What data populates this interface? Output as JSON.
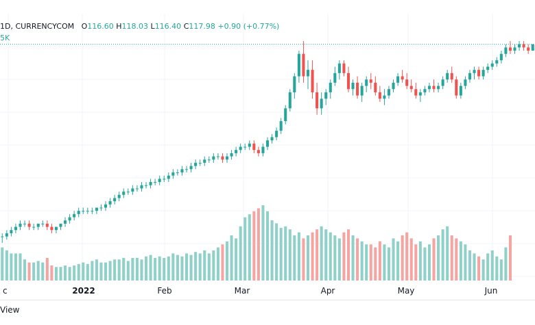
{
  "legend": {
    "symbol_text": "1D, CURRENCYCOM",
    "o_label": "O",
    "o_value": "116.60",
    "h_label": "H",
    "h_value": "118.03",
    "l_label": "L",
    "l_value": "116.40",
    "c_label": "C",
    "c_value": "117.98",
    "change": "+0.90 (+0.77%)",
    "volume_text": "5K"
  },
  "footer": {
    "text": "View"
  },
  "colors": {
    "up": "#26a69a",
    "down": "#ef5350",
    "vol_up": "#8fd0c8",
    "vol_down": "#f5a4a1",
    "grid": "#f0f3fa",
    "axis_text": "#131722"
  },
  "chart_data": {
    "type": "candlestick",
    "x_labels": [
      "c",
      "2022",
      "Feb",
      "Mar",
      "Apr",
      "May",
      "Jun"
    ],
    "last_close_line": true,
    "grid": true,
    "series": [
      {
        "kind": "ohlc",
        "values": [
          [
            58,
            59,
            56,
            58
          ],
          [
            58,
            60,
            57,
            59
          ],
          [
            59,
            61,
            58,
            60
          ],
          [
            60,
            62,
            59,
            61
          ],
          [
            61,
            63,
            60,
            62
          ],
          [
            62,
            63,
            61,
            62
          ],
          [
            62,
            63,
            60,
            61
          ],
          [
            61,
            62,
            60,
            61
          ],
          [
            61,
            62,
            60,
            62
          ],
          [
            62,
            63,
            61,
            62
          ],
          [
            62,
            63,
            60,
            61
          ],
          [
            61,
            62,
            59,
            60
          ],
          [
            60,
            61,
            59,
            61
          ],
          [
            61,
            62,
            60,
            62
          ],
          [
            62,
            64,
            61,
            63
          ],
          [
            63,
            65,
            62,
            64
          ],
          [
            64,
            66,
            63,
            65
          ],
          [
            65,
            67,
            64,
            66
          ],
          [
            66,
            67,
            65,
            66
          ],
          [
            66,
            67,
            65,
            66
          ],
          [
            66,
            67,
            65,
            66
          ],
          [
            66,
            67,
            65,
            67
          ],
          [
            67,
            68,
            66,
            67
          ],
          [
            67,
            69,
            66,
            68
          ],
          [
            68,
            70,
            67,
            69
          ],
          [
            69,
            71,
            68,
            70
          ],
          [
            70,
            72,
            69,
            71
          ],
          [
            71,
            73,
            70,
            72
          ],
          [
            72,
            73,
            71,
            72
          ],
          [
            72,
            74,
            71,
            73
          ],
          [
            73,
            74,
            72,
            73
          ],
          [
            73,
            75,
            72,
            74
          ],
          [
            74,
            75,
            73,
            74
          ],
          [
            74,
            76,
            73,
            75
          ],
          [
            75,
            76,
            74,
            75
          ],
          [
            75,
            77,
            74,
            76
          ],
          [
            76,
            77,
            75,
            76
          ],
          [
            76,
            78,
            75,
            77
          ],
          [
            77,
            79,
            76,
            78
          ],
          [
            78,
            79,
            77,
            78
          ],
          [
            78,
            80,
            77,
            79
          ],
          [
            79,
            80,
            78,
            79
          ],
          [
            79,
            81,
            78,
            80
          ],
          [
            80,
            82,
            79,
            81
          ],
          [
            81,
            82,
            80,
            81
          ],
          [
            81,
            83,
            80,
            82
          ],
          [
            82,
            83,
            81,
            82
          ],
          [
            82,
            84,
            81,
            83
          ],
          [
            83,
            84,
            82,
            83
          ],
          [
            83,
            84,
            81,
            82
          ],
          [
            82,
            84,
            81,
            83
          ],
          [
            83,
            85,
            82,
            84
          ],
          [
            84,
            86,
            83,
            85
          ],
          [
            85,
            87,
            84,
            86
          ],
          [
            86,
            87,
            85,
            86
          ],
          [
            86,
            88,
            85,
            87
          ],
          [
            87,
            88,
            84,
            85
          ],
          [
            85,
            86,
            83,
            84
          ],
          [
            84,
            87,
            83,
            86
          ],
          [
            86,
            89,
            85,
            88
          ],
          [
            88,
            90,
            87,
            89
          ],
          [
            89,
            92,
            88,
            91
          ],
          [
            91,
            95,
            90,
            94
          ],
          [
            94,
            99,
            93,
            98
          ],
          [
            98,
            104,
            97,
            103
          ],
          [
            103,
            109,
            101,
            108
          ],
          [
            108,
            116,
            106,
            115
          ],
          [
            115,
            119,
            106,
            108
          ],
          [
            108,
            113,
            104,
            110
          ],
          [
            110,
            113,
            101,
            103
          ],
          [
            103,
            106,
            96,
            98
          ],
          [
            98,
            103,
            96,
            101
          ],
          [
            101,
            104,
            99,
            103
          ],
          [
            103,
            107,
            101,
            106
          ],
          [
            106,
            111,
            105,
            109
          ],
          [
            109,
            113,
            107,
            112
          ],
          [
            112,
            113,
            108,
            109
          ],
          [
            109,
            111,
            103,
            104
          ],
          [
            104,
            107,
            102,
            106
          ],
          [
            106,
            108,
            101,
            102
          ],
          [
            102,
            106,
            100,
            105
          ],
          [
            105,
            108,
            103,
            107
          ],
          [
            107,
            109,
            104,
            106
          ],
          [
            106,
            108,
            102,
            103
          ],
          [
            103,
            105,
            100,
            101
          ],
          [
            101,
            104,
            99,
            102
          ],
          [
            102,
            105,
            101,
            104
          ],
          [
            104,
            107,
            103,
            106
          ],
          [
            106,
            109,
            105,
            108
          ],
          [
            108,
            110,
            106,
            107
          ],
          [
            107,
            109,
            104,
            105
          ],
          [
            105,
            107,
            103,
            104
          ],
          [
            104,
            106,
            101,
            102
          ],
          [
            102,
            104,
            100,
            103
          ],
          [
            103,
            105,
            102,
            104
          ],
          [
            104,
            106,
            103,
            105
          ],
          [
            105,
            107,
            103,
            104
          ],
          [
            104,
            106,
            103,
            105
          ],
          [
            105,
            108,
            104,
            107
          ],
          [
            107,
            110,
            106,
            109
          ],
          [
            109,
            111,
            106,
            107
          ],
          [
            107,
            108,
            101,
            102
          ],
          [
            102,
            106,
            101,
            105
          ],
          [
            105,
            108,
            104,
            107
          ],
          [
            107,
            110,
            106,
            109
          ],
          [
            109,
            111,
            107,
            110
          ],
          [
            110,
            111,
            107,
            108
          ],
          [
            108,
            111,
            107,
            110
          ],
          [
            110,
            112,
            109,
            111
          ],
          [
            111,
            113,
            110,
            112
          ],
          [
            112,
            114,
            111,
            113
          ],
          [
            113,
            116,
            112,
            115
          ],
          [
            115,
            118,
            114,
            117
          ],
          [
            117,
            119,
            115,
            116
          ],
          [
            116,
            118,
            115,
            117
          ],
          [
            117,
            119,
            116,
            118
          ],
          [
            118,
            119,
            116,
            117
          ],
          [
            117,
            118,
            115,
            116
          ],
          [
            116,
            118,
            116,
            118
          ]
        ]
      }
    ],
    "volume": [
      22,
      20,
      18,
      18,
      18,
      14,
      12,
      12,
      13,
      12,
      15,
      10,
      9,
      9,
      10,
      9,
      10,
      11,
      12,
      11,
      13,
      14,
      12,
      12,
      13,
      14,
      14,
      15,
      13,
      15,
      15,
      14,
      16,
      17,
      15,
      16,
      15,
      16,
      18,
      17,
      16,
      18,
      17,
      19,
      18,
      20,
      18,
      20,
      22,
      24,
      26,
      30,
      28,
      36,
      42,
      44,
      46,
      48,
      50,
      46,
      40,
      38,
      35,
      36,
      34,
      30,
      32,
      28,
      30,
      32,
      34,
      36,
      34,
      32,
      30,
      28,
      32,
      34,
      30,
      28,
      26,
      24,
      24,
      22,
      26,
      24,
      22,
      28,
      26,
      30,
      32,
      28,
      24,
      26,
      22,
      24,
      28,
      30,
      34,
      36,
      30,
      28,
      26,
      24,
      20,
      18,
      16,
      14,
      18,
      20,
      16,
      14,
      22,
      30
    ]
  }
}
